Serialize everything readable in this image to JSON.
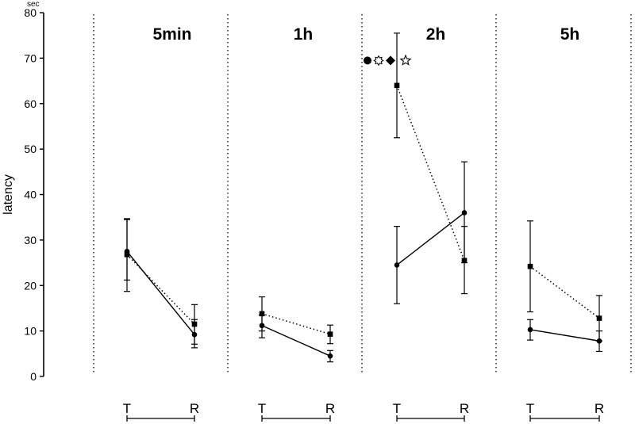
{
  "chart_data": {
    "type": "line",
    "ylabel": "latency",
    "yunit": "sec",
    "ylim": [
      0,
      80
    ],
    "yticks": [
      "0",
      "10",
      "20",
      "30",
      "40",
      "50",
      "60",
      "70",
      "80"
    ],
    "categories": [
      "T",
      "R"
    ],
    "grid": false,
    "panels": [
      {
        "title": "5min",
        "series": [
          {
            "style": "solid-circle",
            "values": [
              27.5,
              9.2
            ],
            "err": [
              [
                18.7,
                34.5
              ],
              [
                6.3,
                12.5
              ]
            ]
          },
          {
            "style": "dotted-square",
            "values": [
              26.8,
              11.5
            ],
            "err": [
              [
                21.2,
                34.7
              ],
              [
                7.1,
                15.8
              ]
            ]
          }
        ]
      },
      {
        "title": "1h",
        "series": [
          {
            "style": "solid-circle",
            "values": [
              11.2,
              4.5
            ],
            "err": [
              [
                8.5,
                13.5
              ],
              [
                3.2,
                5.7
              ]
            ]
          },
          {
            "style": "dotted-square",
            "values": [
              13.8,
              9.3
            ],
            "err": [
              [
                10.0,
                17.5
              ],
              [
                7.2,
                11.3
              ]
            ]
          }
        ]
      },
      {
        "title": "2h",
        "series": [
          {
            "style": "solid-circle",
            "values": [
              24.5,
              36.0
            ],
            "err": [
              [
                16.0,
                33.0
              ],
              [
                25.0,
                47.2
              ]
            ]
          },
          {
            "style": "dotted-square",
            "values": [
              64.0,
              25.5
            ],
            "err": [
              [
                52.5,
                75.5
              ],
              [
                18.2,
                33.0
              ]
            ]
          }
        ],
        "markers": [
          "filled-circle",
          "open-sun",
          "filled-diamond",
          "open-star"
        ]
      },
      {
        "title": "5h",
        "series": [
          {
            "style": "solid-circle",
            "values": [
              10.3,
              7.8
            ],
            "err": [
              [
                8.0,
                12.5
              ],
              [
                5.5,
                10.0
              ]
            ]
          },
          {
            "style": "dotted-square",
            "values": [
              24.2,
              12.8
            ],
            "err": [
              [
                14.2,
                34.2
              ],
              [
                7.8,
                17.8
              ]
            ]
          }
        ]
      }
    ]
  }
}
